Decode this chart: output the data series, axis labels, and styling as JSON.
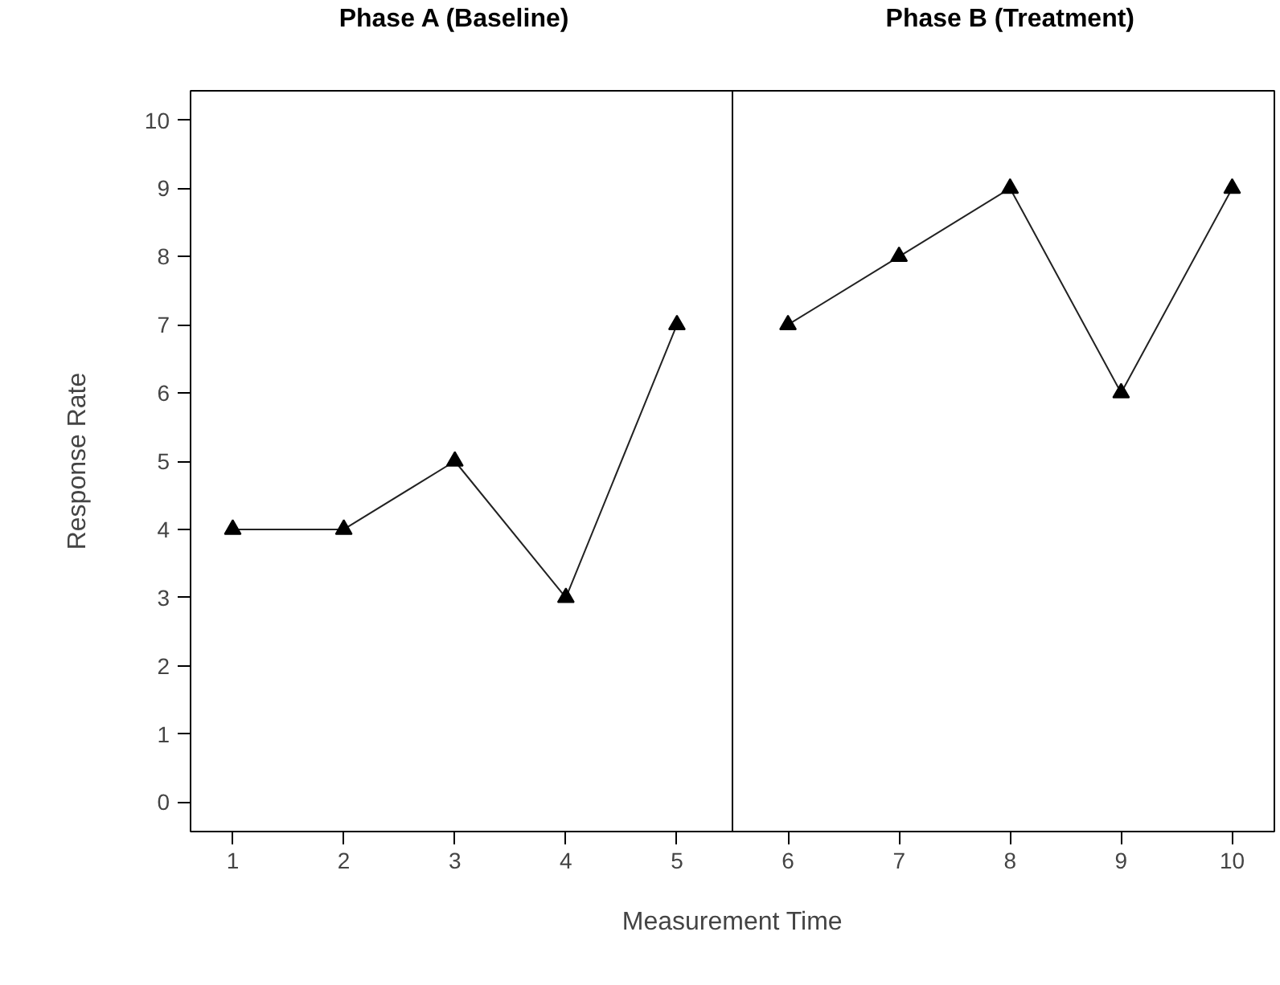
{
  "chart_data": {
    "type": "line",
    "xlabel": "Measurement Time",
    "ylabel": "Response Rate",
    "annotations": [
      "Phase A (Baseline)",
      "Phase B (Treatment)"
    ],
    "series": [
      {
        "color": "#222222",
        "x": [
          1,
          2,
          3,
          4,
          5
        ],
        "values": [
          4,
          4,
          5,
          3,
          7
        ]
      },
      {
        "color": "#222222",
        "x": [
          6,
          7,
          8,
          9,
          10
        ],
        "values": [
          7,
          8,
          9,
          6,
          9
        ]
      }
    ],
    "xlim": [
      0.62,
      10.38
    ],
    "ylim": [
      -0.43,
      10.43
    ],
    "xticks": [
      1,
      2,
      3,
      4,
      5,
      6,
      7,
      8,
      9,
      10
    ],
    "yticks": [
      0,
      1,
      2,
      3,
      4,
      5,
      6,
      7,
      8,
      9,
      10
    ],
    "ref_lines": [
      {
        "axis": "x",
        "value": 5.5,
        "color": "#000000"
      }
    ],
    "marker": "triangle",
    "line_style": "solid",
    "grid": false
  }
}
